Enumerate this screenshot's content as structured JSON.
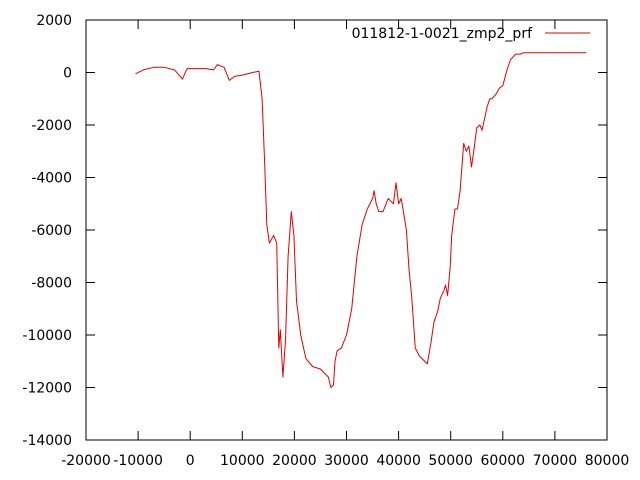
{
  "chart_data": {
    "type": "line",
    "title": "",
    "xlabel": "",
    "ylabel": "",
    "xlim": [
      -20000,
      80000
    ],
    "ylim": [
      -14000,
      2000
    ],
    "xticks": [
      -20000,
      -10000,
      0,
      10000,
      20000,
      30000,
      40000,
      50000,
      60000,
      70000,
      80000
    ],
    "xtick_labels": [
      "-20000",
      "-10000",
      "0",
      "10000",
      "20000",
      "30000",
      "40000",
      "50000",
      "60000",
      "70000",
      "80000"
    ],
    "yticks": [
      2000,
      0,
      -2000,
      -4000,
      -6000,
      -8000,
      -10000,
      -12000,
      -14000
    ],
    "ytick_labels": [
      "2000",
      "0",
      "-2000",
      "-4000",
      "-6000",
      "-8000",
      "-10000",
      "-12000",
      "-14000"
    ],
    "grid": false,
    "legend": "top-right",
    "series": [
      {
        "name": "011812-1-0021_zmp2_prf",
        "color": "#e00000",
        "x": [
          -10500,
          -9000,
          -7000,
          -5000,
          -3000,
          -1500,
          -600,
          0,
          800,
          3000,
          4500,
          5200,
          6500,
          7500,
          8500,
          10000,
          12000,
          13200,
          13800,
          14300,
          14700,
          15200,
          16000,
          16600,
          17000,
          17300,
          17800,
          18300,
          18800,
          19400,
          19900,
          20400,
          21200,
          22200,
          23500,
          25000,
          26500,
          27000,
          27500,
          27800,
          28200,
          29000,
          30000,
          30500,
          31000,
          31500,
          32000,
          33000,
          34000,
          35000,
          35300,
          35700,
          36200,
          37000,
          38000,
          39000,
          39500,
          40000,
          40500,
          41500,
          42000,
          42500,
          43200,
          44000,
          44500,
          45500,
          46200,
          46800,
          47500,
          48000,
          48700,
          49000,
          49400,
          49900,
          50200,
          50800,
          51300,
          51800,
          52500,
          53000,
          53500,
          54000,
          54500,
          55000,
          55600,
          56000,
          57000,
          57500,
          57900,
          58800,
          59300,
          60000,
          60800,
          61500,
          62500,
          63300,
          64000,
          66000,
          68000,
          70000,
          72000,
          74000,
          76000
        ],
        "y": [
          -50,
          100,
          200,
          200,
          100,
          -250,
          150,
          150,
          150,
          150,
          100,
          300,
          200,
          -300,
          -150,
          -100,
          0,
          50,
          -1000,
          -3500,
          -5800,
          -6500,
          -6200,
          -6500,
          -10500,
          -9800,
          -11600,
          -10200,
          -7000,
          -5300,
          -6200,
          -8700,
          -10000,
          -10900,
          -11200,
          -11300,
          -11600,
          -12000,
          -11900,
          -11000,
          -10600,
          -10500,
          -10000,
          -9500,
          -9000,
          -8000,
          -7000,
          -5800,
          -5200,
          -4800,
          -4500,
          -5000,
          -5300,
          -5300,
          -4800,
          -5000,
          -4200,
          -5000,
          -4800,
          -6000,
          -7500,
          -8500,
          -10500,
          -10800,
          -10900,
          -11100,
          -10300,
          -9500,
          -9100,
          -8600,
          -8300,
          -8100,
          -8500,
          -7400,
          -6200,
          -5200,
          -5200,
          -4500,
          -2700,
          -3000,
          -2800,
          -3600,
          -2900,
          -2100,
          -2000,
          -2200,
          -1300,
          -1000,
          -1000,
          -800,
          -600,
          -500,
          100,
          500,
          700,
          700,
          750,
          750,
          750,
          750,
          750,
          750,
          750
        ]
      }
    ]
  }
}
